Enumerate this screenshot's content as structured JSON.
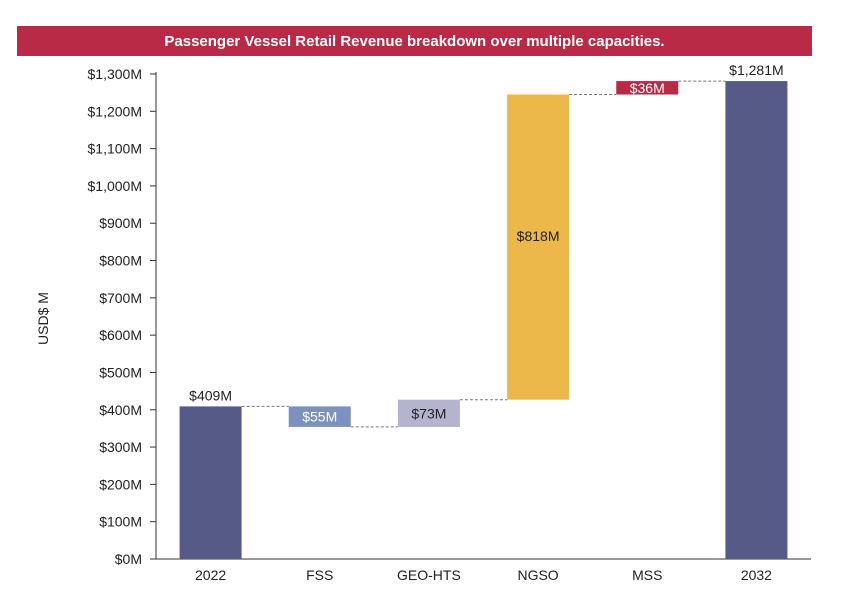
{
  "chart_data": {
    "type": "waterfall",
    "title": "Passenger Vessel Retail Revenue breakdown over multiple capacities.",
    "ylabel": "USD$ M",
    "xlabel": "",
    "ylim": [
      0,
      1300
    ],
    "yticks": [
      0,
      100,
      200,
      300,
      400,
      500,
      600,
      700,
      800,
      900,
      1000,
      1100,
      1200,
      1300
    ],
    "ytick_labels": [
      "$0M",
      "$100M",
      "$200M",
      "$300M",
      "$400M",
      "$500M",
      "$600M",
      "$700M",
      "$800M",
      "$900M",
      "$1,000M",
      "$1,100M",
      "$1,200M",
      "$1,300M"
    ],
    "categories": [
      "2022",
      "FSS",
      "GEO-HTS",
      "NGSO",
      "MSS",
      "2032"
    ],
    "bars": [
      {
        "category": "2022",
        "kind": "total",
        "start": 0,
        "end": 409,
        "label": "$409M",
        "color": "#555a87",
        "label_color": "#222222"
      },
      {
        "category": "FSS",
        "kind": "delta",
        "start": 409,
        "end": 354,
        "label": "$55M",
        "color": "#7b91c0",
        "label_color": "#ffffff"
      },
      {
        "category": "GEO-HTS",
        "kind": "delta",
        "start": 354,
        "end": 427,
        "label": "$73M",
        "color": "#b4b4cf",
        "label_color": "#222222"
      },
      {
        "category": "NGSO",
        "kind": "delta",
        "start": 427,
        "end": 1245,
        "label": "$818M",
        "color": "#ecb84a",
        "label_color": "#222222"
      },
      {
        "category": "MSS",
        "kind": "delta",
        "start": 1245,
        "end": 1281,
        "label": "$36M",
        "color": "#b82a45",
        "label_color": "#ffffff"
      },
      {
        "category": "2032",
        "kind": "total",
        "start": 0,
        "end": 1281,
        "label": "$1,281M",
        "color": "#555a87",
        "label_color": "#222222"
      }
    ],
    "grid": false,
    "legend": "none"
  }
}
